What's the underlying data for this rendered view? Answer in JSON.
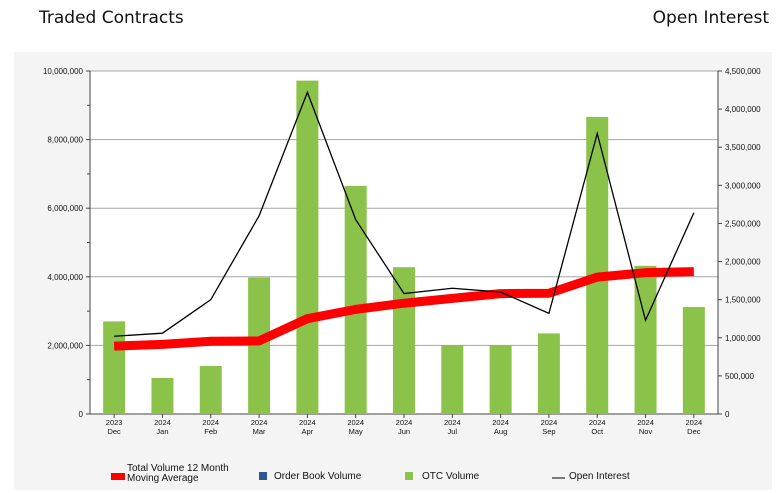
{
  "header": {
    "left_title": "Traded Contracts",
    "right_title": "Open Interest"
  },
  "chart_data": {
    "type": "bar",
    "categories": [
      [
        "2023",
        "Dec"
      ],
      [
        "2024",
        "Jan"
      ],
      [
        "2024",
        "Feb"
      ],
      [
        "2024",
        "Mar"
      ],
      [
        "2024",
        "Apr"
      ],
      [
        "2024",
        "May"
      ],
      [
        "2024",
        "Jun"
      ],
      [
        "2024",
        "Jul"
      ],
      [
        "2024",
        "Aug"
      ],
      [
        "2024",
        "Sep"
      ],
      [
        "2024",
        "Oct"
      ],
      [
        "2024",
        "Nov"
      ],
      [
        "2024",
        "Dec"
      ]
    ],
    "left_axis": {
      "range": [
        0,
        10000000
      ],
      "ticks": [
        0,
        2000000,
        4000000,
        6000000,
        8000000,
        10000000
      ],
      "tick_labels": [
        "0",
        "2,000,000",
        "4,000,000",
        "6,000,000",
        "8,000,000",
        "10,000,000"
      ]
    },
    "right_axis": {
      "range": [
        0,
        4500000
      ],
      "ticks": [
        0,
        500000,
        1000000,
        1500000,
        2000000,
        2500000,
        3000000,
        3500000,
        4000000,
        4500000
      ],
      "tick_labels": [
        "0",
        "500,000",
        "1,000,000",
        "1,500,000",
        "2,000,000",
        "2,500,000",
        "3,000,000",
        "3,500,000",
        "4,000,000",
        "4,500,000"
      ]
    },
    "grid": true,
    "series": [
      {
        "name": "Total Volume 12 Month Moving Average",
        "kind": "line",
        "axis": "left",
        "color": "#ff0000",
        "values": [
          1980000,
          2030000,
          2120000,
          2130000,
          2780000,
          3050000,
          3230000,
          3370000,
          3510000,
          3520000,
          3990000,
          4120000,
          4150000
        ]
      },
      {
        "name": "Order Book Volume",
        "kind": "bar",
        "axis": "left",
        "color": "#2a5599",
        "values": [
          0,
          0,
          0,
          0,
          0,
          0,
          0,
          0,
          0,
          0,
          0,
          0,
          0
        ]
      },
      {
        "name": "OTC Volume",
        "kind": "bar",
        "axis": "left",
        "color": "#8bc34a",
        "values": [
          2700000,
          1050000,
          1400000,
          3980000,
          9720000,
          6650000,
          4280000,
          2000000,
          2000000,
          2350000,
          8660000,
          4320000,
          3120000
        ]
      },
      {
        "name": "Open Interest",
        "kind": "line",
        "axis": "right",
        "color": "#000000",
        "values": [
          1020000,
          1060000,
          1500000,
          2600000,
          4220000,
          2550000,
          1580000,
          1650000,
          1600000,
          1320000,
          3680000,
          1230000,
          2640000
        ]
      }
    ],
    "legend": {
      "placement": "bottom",
      "labels": [
        "Total Volume 12 Month Moving Average",
        "Order Book Volume",
        "OTC Volume",
        "Open Interest"
      ],
      "label_lines": [
        [
          "Total Volume 12 Month",
          "Moving Average"
        ],
        [
          "Order Book Volume"
        ],
        [
          "OTC Volume"
        ],
        [
          "Open Interest"
        ]
      ]
    }
  }
}
